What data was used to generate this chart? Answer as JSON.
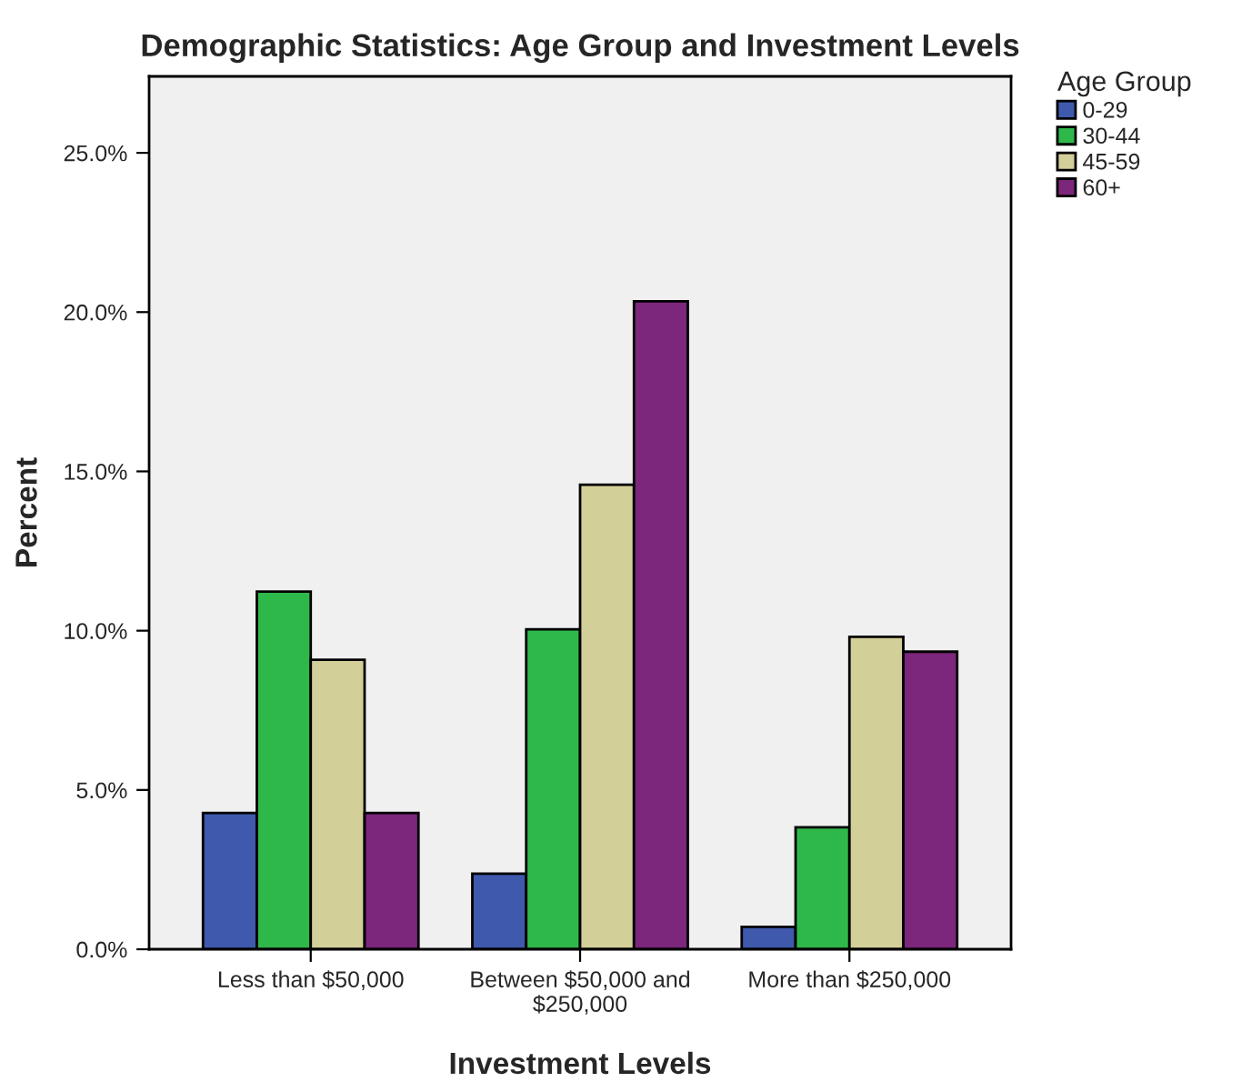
{
  "chart_data": {
    "type": "bar",
    "title": "Demographic Statistics: Age Group and Investment Levels",
    "xlabel": "Investment Levels",
    "ylabel": "Percent",
    "legend_title": "Age Group",
    "categories": [
      "Less than $50,000",
      "Between $50,000 and\n$250,000",
      "More than $250,000"
    ],
    "series": [
      {
        "name": "0-29",
        "color": "#3f59ad",
        "values": [
          4.28,
          2.37,
          0.7
        ]
      },
      {
        "name": "30-44",
        "color": "#2fb84a",
        "values": [
          11.23,
          10.04,
          3.83
        ]
      },
      {
        "name": "45-59",
        "color": "#d3cf98",
        "values": [
          9.09,
          14.58,
          9.81
        ]
      },
      {
        "name": "60+",
        "color": "#7c267c",
        "values": [
          4.28,
          20.34,
          9.34
        ]
      }
    ],
    "ylim": [
      0,
      27.4
    ],
    "yticks": [
      {
        "value": 0,
        "label": "0.0%"
      },
      {
        "value": 5,
        "label": "5.0%"
      },
      {
        "value": 10,
        "label": "10.0%"
      },
      {
        "value": 15,
        "label": "15.0%"
      },
      {
        "value": 20,
        "label": "20.0%"
      },
      {
        "value": 25,
        "label": "25.0%"
      }
    ],
    "grid": false,
    "legend": "top right"
  }
}
